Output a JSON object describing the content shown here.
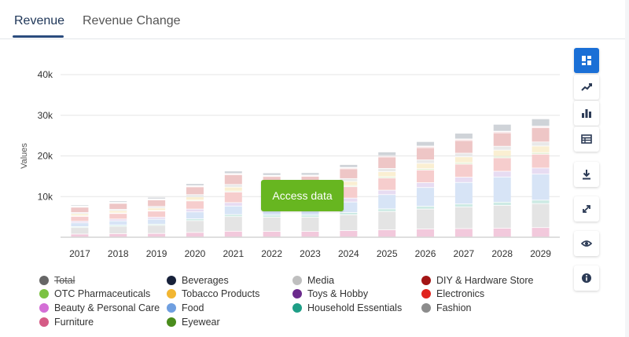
{
  "tabs": [
    {
      "label": "Revenue",
      "active": true
    },
    {
      "label": "Revenue Change",
      "active": false
    }
  ],
  "overlay_button": {
    "label": "Access data",
    "color": "#67b620"
  },
  "toolbar": {
    "icons": [
      "dashboard-icon",
      "line-chart-icon",
      "bar-chart-icon",
      "table-icon",
      "download-icon",
      "expand-icon",
      "eye-icon",
      "info-icon"
    ],
    "active_color": "#1a6fd6"
  },
  "chart_data": {
    "type": "bar",
    "stacked": true,
    "title": "",
    "xlabel": "",
    "ylabel": "Values",
    "ylim": [
      0,
      40000
    ],
    "yticks": [
      10000,
      20000,
      30000,
      40000
    ],
    "ytick_labels": [
      "10k",
      "20k",
      "30k",
      "40k"
    ],
    "grid": true,
    "categories": [
      "2017",
      "2018",
      "2019",
      "2020",
      "2021",
      "2022",
      "2023",
      "2024",
      "2025",
      "2026",
      "2027",
      "2028",
      "2029"
    ],
    "series": [
      {
        "name": "Beauty & Personal Care",
        "color": "#f2c9dc",
        "values": [
          700,
          800,
          850,
          1100,
          1400,
          1350,
          1350,
          1550,
          1750,
          1950,
          2050,
          2150,
          2300
        ]
      },
      {
        "name": "Fashion",
        "color": "#e4e4e4",
        "values": [
          1600,
          1800,
          2000,
          2900,
          3600,
          3500,
          3500,
          3900,
          4500,
          4900,
          5300,
          5600,
          5900
        ]
      },
      {
        "name": "Household Essentials",
        "color": "#cdeae4",
        "values": [
          250,
          300,
          300,
          450,
          500,
          500,
          500,
          550,
          650,
          700,
          750,
          800,
          850
        ]
      },
      {
        "name": "Food",
        "color": "#d7e4f6",
        "values": [
          900,
          1050,
          1200,
          1700,
          2100,
          2050,
          2100,
          2600,
          3500,
          4600,
          5300,
          6200,
          6400
        ]
      },
      {
        "name": "Toys & Hobby",
        "color": "#e7dcf2",
        "values": [
          400,
          450,
          500,
          700,
          850,
          850,
          850,
          950,
          1100,
          1200,
          1300,
          1400,
          1500
        ]
      },
      {
        "name": "Electronics",
        "color": "#f6cdcd",
        "values": [
          1200,
          1350,
          1500,
          2000,
          2600,
          2500,
          2450,
          2800,
          3000,
          3100,
          3200,
          3300,
          3400
        ]
      },
      {
        "name": "OTC Pharmaceuticals",
        "color": "#e3efd2",
        "values": [
          150,
          150,
          150,
          200,
          250,
          250,
          250,
          300,
          350,
          350,
          400,
          400,
          400
        ]
      },
      {
        "name": "Tobacco Products",
        "color": "#faefd2",
        "values": [
          500,
          550,
          600,
          800,
          950,
          900,
          900,
          1000,
          1200,
          1300,
          1400,
          1500,
          1600
        ]
      },
      {
        "name": "Media",
        "color": "#e9e9e9",
        "values": [
          300,
          350,
          400,
          550,
          650,
          650,
          650,
          700,
          800,
          850,
          900,
          950,
          1000
        ]
      },
      {
        "name": "DIY & Hardware Store",
        "color": "#eec6c6",
        "values": [
          1300,
          1450,
          1600,
          1900,
          2400,
          2300,
          2350,
          2400,
          2800,
          3000,
          3100,
          3300,
          3500
        ]
      },
      {
        "name": "Furniture",
        "color": "#f7dcdf",
        "values": [
          150,
          150,
          150,
          200,
          200,
          200,
          200,
          250,
          250,
          300,
          300,
          300,
          300
        ]
      },
      {
        "name": "Eyewear",
        "color": "#dbe8d2",
        "values": [
          100,
          100,
          100,
          100,
          100,
          100,
          100,
          100,
          100,
          100,
          100,
          100,
          100
        ]
      },
      {
        "name": "Beverages",
        "color": "#cfd3d8",
        "values": [
          300,
          350,
          400,
          500,
          600,
          600,
          600,
          700,
          900,
          1100,
          1400,
          1700,
          1800
        ]
      }
    ]
  },
  "legend": {
    "placement": "bottom",
    "columns": [
      [
        {
          "label": "Total",
          "color": "#666666",
          "hidden": true
        },
        {
          "label": "OTC Pharmaceuticals",
          "color": "#7cc242",
          "hidden": false
        },
        {
          "label": "Beauty & Personal Care",
          "color": "#d46fd6",
          "hidden": false
        },
        {
          "label": "Furniture",
          "color": "#d55b86",
          "hidden": false
        }
      ],
      [
        {
          "label": "Beverages",
          "color": "#17213a",
          "hidden": false
        },
        {
          "label": "Tobacco Products",
          "color": "#f2b632",
          "hidden": false
        },
        {
          "label": "Food",
          "color": "#6f9fe0",
          "hidden": false
        },
        {
          "label": "Eyewear",
          "color": "#4a8c1c",
          "hidden": false
        }
      ],
      [
        {
          "label": "Media",
          "color": "#bfbfbf",
          "hidden": false
        },
        {
          "label": "Toys & Hobby",
          "color": "#6b2a8c",
          "hidden": false
        },
        {
          "label": "Household Essentials",
          "color": "#1e9e86",
          "hidden": false
        }
      ],
      [
        {
          "label": "DIY & Hardware Store",
          "color": "#a31515",
          "hidden": false
        },
        {
          "label": "Electronics",
          "color": "#e0231d",
          "hidden": false
        },
        {
          "label": "Fashion",
          "color": "#8c8c8c",
          "hidden": false
        }
      ]
    ]
  }
}
